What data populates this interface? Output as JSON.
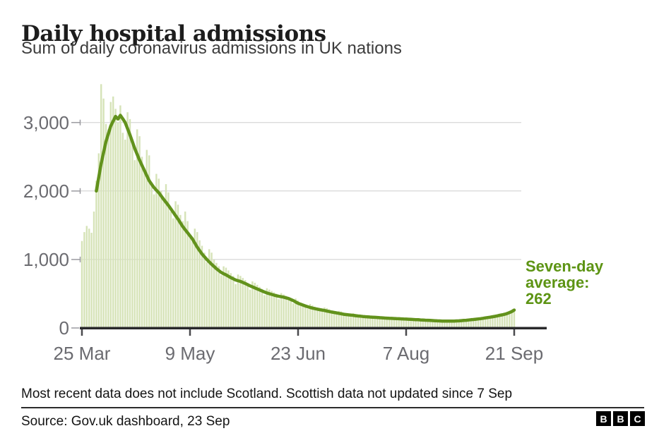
{
  "header": {
    "title": "Daily hospital admissions",
    "subtitle": "Sum of daily coronavirus admissions in UK nations"
  },
  "chart_data": {
    "type": "bar",
    "title": "Daily hospital admissions",
    "subtitle": "Sum of daily coronavirus admissions in UK nations",
    "xlabel": "",
    "ylabel": "",
    "x_unit": "day",
    "x_range": [
      "25 Mar",
      "21 Sep"
    ],
    "ylim": [
      0,
      3600
    ],
    "grid": "horizontal",
    "legend": "none",
    "xticks": {
      "labels": [
        "25 Mar",
        "9 May",
        "23 Jun",
        "7 Aug",
        "21 Sep"
      ],
      "day_index": [
        0,
        45,
        90,
        135,
        180
      ]
    },
    "yticks": {
      "labels": [
        "3,000",
        "2,000",
        "1,000",
        "0"
      ],
      "values": [
        3000,
        2000,
        1000,
        0
      ]
    },
    "series": [
      {
        "name": "daily_admissions",
        "type": "bar",
        "color": "#d6e3b8",
        "values": [
          1270,
          1400,
          1490,
          1450,
          1390,
          1700,
          2150,
          2550,
          3560,
          3350,
          2980,
          2900,
          3300,
          3380,
          3200,
          3000,
          3250,
          2850,
          2750,
          3150,
          3050,
          2700,
          2450,
          2900,
          2800,
          2500,
          2300,
          2600,
          2520,
          2100,
          1950,
          2250,
          2180,
          2000,
          1900,
          2100,
          1980,
          1700,
          1600,
          1850,
          1800,
          1650,
          1560,
          1700,
          1560,
          1330,
          1260,
          1450,
          1400,
          1280,
          1200,
          1100,
          960,
          1150,
          1100,
          1000,
          950,
          900,
          770,
          900,
          880,
          840,
          800,
          760,
          640,
          780,
          760,
          730,
          700,
          660,
          560,
          680,
          660,
          630,
          600,
          570,
          480,
          580,
          560,
          540,
          520,
          500,
          420,
          510,
          490,
          470,
          450,
          430,
          360,
          430,
          400,
          370,
          350,
          340,
          280,
          350,
          330,
          310,
          300,
          290,
          240,
          300,
          290,
          270,
          255,
          245,
          205,
          250,
          240,
          225,
          215,
          205,
          170,
          215,
          205,
          195,
          190,
          180,
          150,
          185,
          180,
          172,
          165,
          158,
          135,
          168,
          163,
          156,
          150,
          145,
          122,
          152,
          148,
          143,
          140,
          134,
          115,
          140,
          136,
          132,
          127,
          122,
          103,
          128,
          124,
          119,
          115,
          110,
          92,
          115,
          112,
          108,
          105,
          102,
          88,
          112,
          110,
          113,
          116,
          120,
          100,
          130,
          134,
          139,
          144,
          150,
          128,
          158,
          164,
          171,
          178,
          186,
          160,
          198,
          206,
          215,
          225,
          236,
          205,
          255,
          268
        ]
      },
      {
        "name": "seven_day_average",
        "type": "line",
        "color": "#62921c",
        "values": [
          null,
          null,
          null,
          null,
          null,
          null,
          2000,
          2200,
          2400,
          2560,
          2720,
          2835,
          2950,
          3020,
          3090,
          3050,
          3105,
          3055,
          3000,
          2910,
          2820,
          2720,
          2620,
          2535,
          2450,
          2375,
          2300,
          2225,
          2150,
          2100,
          2050,
          2012,
          1975,
          1928,
          1880,
          1835,
          1790,
          1740,
          1690,
          1640,
          1590,
          1535,
          1480,
          1435,
          1390,
          1345,
          1300,
          1240,
          1180,
          1130,
          1080,
          1040,
          1000,
          965,
          930,
          898,
          865,
          838,
          810,
          792,
          775,
          755,
          735,
          718,
          700,
          690,
          680,
          665,
          650,
          632,
          615,
          600,
          585,
          570,
          555,
          540,
          525,
          512,
          500,
          490,
          480,
          471,
          462,
          456,
          450,
          440,
          430,
          415,
          400,
          380,
          360,
          348,
          335,
          322,
          310,
          300,
          290,
          282,
          275,
          268,
          262,
          255,
          247,
          240,
          233,
          227,
          220,
          213,
          207,
          200,
          196,
          192,
          188,
          184,
          179,
          175,
          172,
          168,
          165,
          163,
          160,
          158,
          155,
          153,
          150,
          148,
          145,
          143,
          141,
          140,
          138,
          136,
          135,
          133,
          131,
          130,
          128,
          126,
          124,
          122,
          120,
          117,
          115,
          113,
          112,
          110,
          108,
          106,
          104,
          103,
          101,
          100,
          100,
          100,
          100,
          101,
          103,
          104,
          107,
          110,
          112,
          116,
          120,
          124,
          128,
          132,
          136,
          141,
          147,
          152,
          158,
          164,
          170,
          177,
          185,
          192,
          200,
          210,
          225,
          240,
          262
        ]
      }
    ],
    "annotation": {
      "label": "Seven-day average:",
      "value": "262",
      "color": "#5d9414"
    },
    "colors": {
      "gridline": "#cdcdcd",
      "axis": "#29292b",
      "tick": "#9a9aa0",
      "x_tick": "#4a4a4e",
      "tick_label": "#6b6b70"
    }
  },
  "footer": {
    "note": "Most recent data does not include Scotland. Scottish data not updated since 7 Sep",
    "source": "Source: Gov.uk dashboard, 23 Sep",
    "logo_letters": [
      "B",
      "B",
      "C"
    ]
  }
}
